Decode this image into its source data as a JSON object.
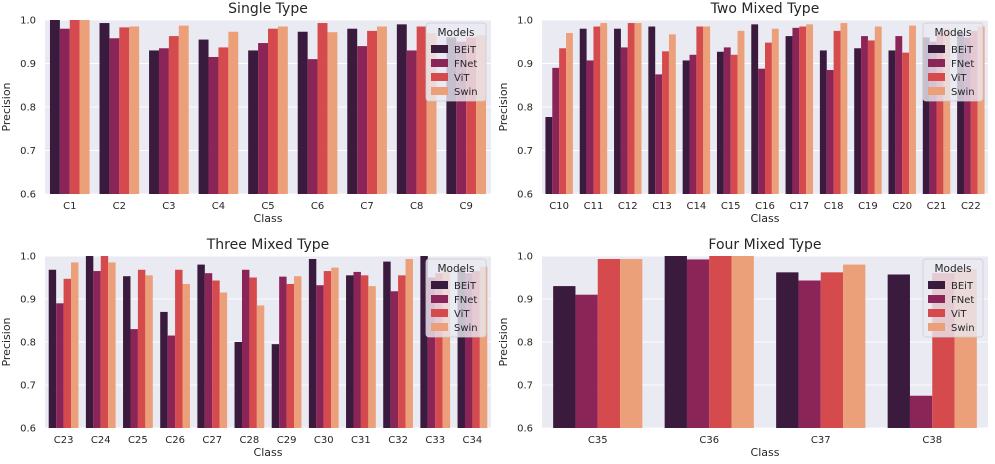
{
  "colors": {
    "background": "#eaeaf2",
    "grid": "#ffffff",
    "series": [
      "#3a1a3d",
      "#8b2558",
      "#d44a4d",
      "#eba07a"
    ]
  },
  "chart_data": [
    {
      "type": "bar",
      "title": "Single Type",
      "xlabel": "Class",
      "ylabel": "Precision",
      "ylim": [
        0.6,
        1.0
      ],
      "yticks": [
        "0.6",
        "0.7",
        "0.8",
        "0.9",
        "1.0"
      ],
      "grid": true,
      "legend": {
        "title": "Models",
        "position": "top-right"
      },
      "categories": [
        "C1",
        "C2",
        "C3",
        "C4",
        "C5",
        "C6",
        "C7",
        "C8",
        "C9"
      ],
      "series": [
        {
          "name": "BEiT",
          "values": [
            1.0,
            0.993,
            0.93,
            0.955,
            0.93,
            0.973,
            0.98,
            0.99,
            0.96
          ]
        },
        {
          "name": "FNet",
          "values": [
            0.98,
            0.958,
            0.935,
            0.915,
            0.947,
            0.91,
            0.94,
            0.93,
            0.95
          ]
        },
        {
          "name": "ViT",
          "values": [
            1.0,
            0.983,
            0.963,
            0.937,
            0.98,
            0.993,
            0.975,
            0.985,
            0.96
          ]
        },
        {
          "name": "Swin",
          "values": [
            1.0,
            0.985,
            0.987,
            0.973,
            0.985,
            0.972,
            0.985,
            0.97,
            0.965
          ]
        }
      ]
    },
    {
      "type": "bar",
      "title": "Two Mixed Type",
      "xlabel": "Class",
      "ylabel": "Precision",
      "ylim": [
        0.6,
        1.0
      ],
      "yticks": [
        "0.6",
        "0.7",
        "0.8",
        "0.9",
        "1.0"
      ],
      "grid": true,
      "legend": {
        "title": "Models",
        "position": "top-right"
      },
      "categories": [
        "C10",
        "C11",
        "C12",
        "C13",
        "C14",
        "C15",
        "C16",
        "C17",
        "C18",
        "C19",
        "C20",
        "C21",
        "C22"
      ],
      "series": [
        {
          "name": "BEiT",
          "values": [
            0.777,
            0.98,
            0.98,
            0.985,
            0.907,
            0.927,
            0.99,
            0.963,
            0.93,
            0.935,
            0.93,
            0.96,
            0.97
          ]
        },
        {
          "name": "FNet",
          "values": [
            0.89,
            0.907,
            0.937,
            0.875,
            0.92,
            0.937,
            0.888,
            0.982,
            0.885,
            0.963,
            0.963,
            0.95,
            0.96
          ]
        },
        {
          "name": "ViT",
          "values": [
            0.935,
            0.985,
            0.993,
            0.928,
            0.985,
            0.92,
            0.948,
            0.985,
            0.975,
            0.953,
            0.925,
            0.97,
            0.975
          ]
        },
        {
          "name": "Swin",
          "values": [
            0.97,
            0.993,
            0.993,
            0.967,
            0.985,
            0.975,
            0.98,
            0.99,
            0.993,
            0.985,
            0.987,
            0.98,
            0.985
          ]
        }
      ]
    },
    {
      "type": "bar",
      "title": "Three Mixed Type",
      "xlabel": "Class",
      "ylabel": "Precision",
      "ylim": [
        0.6,
        1.0
      ],
      "yticks": [
        "0.6",
        "0.7",
        "0.8",
        "0.9",
        "1.0"
      ],
      "grid": true,
      "legend": {
        "title": "Models",
        "position": "top-right"
      },
      "categories": [
        "C23",
        "C24",
        "C25",
        "C26",
        "C27",
        "C28",
        "C29",
        "C30",
        "C31",
        "C32",
        "C33",
        "C34"
      ],
      "series": [
        {
          "name": "BEiT",
          "values": [
            0.968,
            1.0,
            0.953,
            0.87,
            0.98,
            0.8,
            0.795,
            0.993,
            0.955,
            0.987,
            1.0,
            0.97
          ]
        },
        {
          "name": "FNet",
          "values": [
            0.89,
            0.965,
            0.83,
            0.815,
            0.96,
            0.968,
            0.952,
            0.932,
            0.963,
            0.918,
            0.95,
            0.96
          ]
        },
        {
          "name": "ViT",
          "values": [
            0.947,
            1.0,
            0.968,
            0.968,
            0.943,
            0.95,
            0.935,
            0.965,
            0.955,
            0.955,
            0.96,
            0.965
          ]
        },
        {
          "name": "Swin",
          "values": [
            0.985,
            0.985,
            0.955,
            0.935,
            0.915,
            0.885,
            0.953,
            0.973,
            0.93,
            0.993,
            0.97,
            0.975
          ]
        }
      ]
    },
    {
      "type": "bar",
      "title": "Four Mixed Type",
      "xlabel": "Class",
      "ylabel": "Precision",
      "ylim": [
        0.6,
        1.0
      ],
      "yticks": [
        "0.6",
        "0.7",
        "0.8",
        "0.9",
        "1.0"
      ],
      "grid": true,
      "legend": {
        "title": "Models",
        "position": "top-right"
      },
      "categories": [
        "C35",
        "C36",
        "C37",
        "C38"
      ],
      "series": [
        {
          "name": "BEiT",
          "values": [
            0.93,
            1.0,
            0.962,
            0.957
          ]
        },
        {
          "name": "FNet",
          "values": [
            0.91,
            0.992,
            0.943,
            0.675
          ]
        },
        {
          "name": "ViT",
          "values": [
            0.993,
            1.0,
            0.962,
            0.96
          ]
        },
        {
          "name": "Swin",
          "values": [
            0.993,
            1.0,
            0.98,
            0.97
          ]
        }
      ]
    }
  ]
}
